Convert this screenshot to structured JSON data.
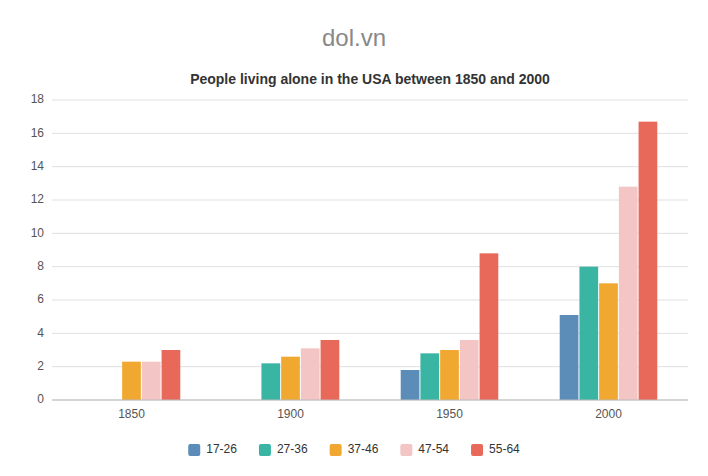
{
  "chart_data": {
    "type": "bar",
    "title": "People living alone in the USA between 1850 and 2000",
    "annotations": [
      "dol.vn"
    ],
    "categories": [
      "1850",
      "1900",
      "1950",
      "2000"
    ],
    "series": [
      {
        "name": "17-26",
        "color": "#5b8db8",
        "values": [
          0,
          0,
          1.8,
          5.1
        ]
      },
      {
        "name": "27-36",
        "color": "#3ab5a4",
        "values": [
          0,
          2.2,
          2.8,
          8.0
        ]
      },
      {
        "name": "37-46",
        "color": "#f0a830",
        "values": [
          2.3,
          2.6,
          3.0,
          7.0
        ]
      },
      {
        "name": "47-54",
        "color": "#f4c5c5",
        "values": [
          2.3,
          3.1,
          3.6,
          12.8
        ]
      },
      {
        "name": "55-64",
        "color": "#e8685a",
        "values": [
          3.0,
          3.6,
          8.8,
          16.7
        ]
      }
    ],
    "ylim": [
      0,
      18
    ],
    "yticks": [
      0,
      2,
      4,
      6,
      8,
      10,
      12,
      14,
      16,
      18
    ],
    "grid": true,
    "legend": "bottom"
  }
}
